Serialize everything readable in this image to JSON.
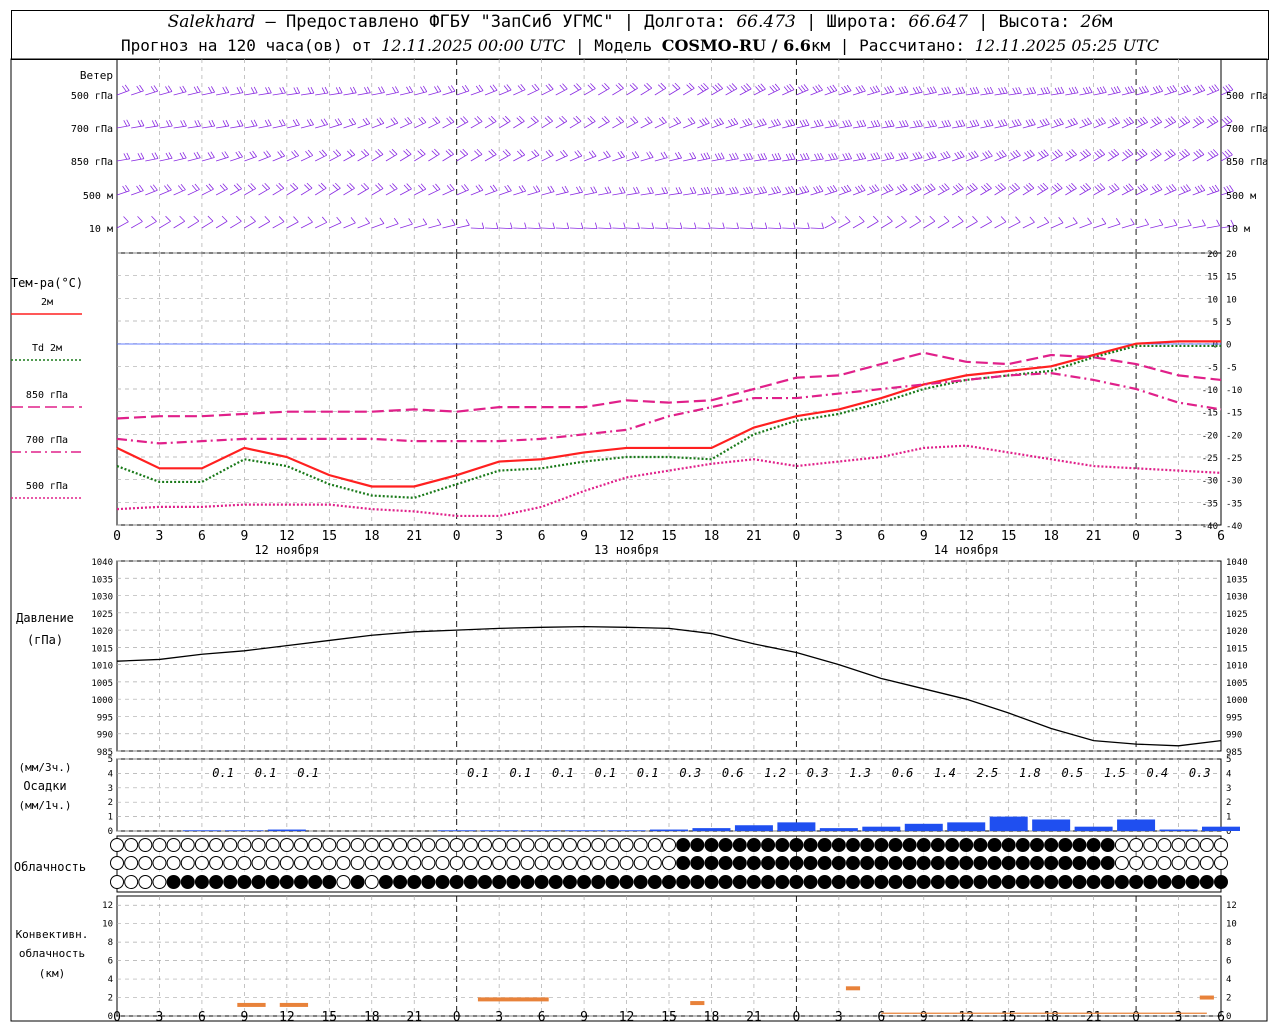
{
  "header": {
    "station": "Salekhard",
    "provider": " – Предоставлено ФГБУ \"ЗапСиб УГМС\" | Долгота: ",
    "lon": "66.473",
    "lat_label": " | Широта: ",
    "lat": "66.647",
    "alt_label": " | Высота: ",
    "alt": "26",
    "alt_unit": "м",
    "forecast_label": "Прогноз на 120 часа(ов) от ",
    "forecast_start": "12.11.2025 00:00 UTC",
    "model_label": " | Модель ",
    "model": "COSMO-RU / 6.6",
    "model_unit": "км",
    "calc_label": " | Рассчитано: ",
    "calc_time": "12.11.2025 05:25 UTC"
  },
  "wind_panel": {
    "title": "Ветер",
    "levels": [
      "500 гПа",
      "700 гПа",
      "850 гПа",
      "500 м",
      "10  м"
    ]
  },
  "temp_panel": {
    "title": "Тем-ра(°С)",
    "legend": [
      {
        "label": "2м",
        "color": "#ff2020",
        "dash": "solid"
      },
      {
        "label": "Td  2м",
        "color": "#1a7a1a",
        "dash": "dotted"
      },
      {
        "label": "850 гПа",
        "color": "#e0208a",
        "dash": "long-dash"
      },
      {
        "label": "700 гПа",
        "color": "#e0208a",
        "dash": "dash-dot"
      },
      {
        "label": "500 гПа",
        "color": "#e0208a",
        "dash": "dotted"
      }
    ],
    "yticks": [
      "20",
      "15",
      "10",
      "5",
      "0",
      "-5",
      "-10",
      "-15",
      "-20",
      "-25",
      "-30",
      "-35",
      "-40"
    ],
    "xticks": [
      "0",
      "3",
      "6",
      "9",
      "12",
      "15",
      "18",
      "21",
      "0",
      "3",
      "6",
      "9",
      "12",
      "15",
      "18",
      "21",
      "0",
      "3",
      "6",
      "9",
      "12",
      "15",
      "18",
      "21",
      "0",
      "3",
      "6"
    ],
    "day_labels": [
      "12 ноября",
      "13 ноября",
      "14 ноября"
    ]
  },
  "pressure_panel": {
    "title1": "Давление",
    "title2": "(гПа)",
    "yticks": [
      "1040",
      "1035",
      "1030",
      "1025",
      "1020",
      "1015",
      "1010",
      "1005",
      "1000",
      "995",
      "990",
      "985"
    ]
  },
  "precip_panel": {
    "unit1": "(мм/3ч.)",
    "title": "Осадки",
    "unit2": "(мм/1ч.)",
    "yticks": [
      "5",
      "4",
      "3",
      "2",
      "1",
      "0"
    ],
    "sums": [
      "0.1",
      "0.1",
      "0.1",
      "0.1",
      "0.1",
      "0.1",
      "0.1",
      "0.1",
      "0.3",
      "0.6",
      "1.2",
      "0.3",
      "1.3",
      "0.6",
      "1.4",
      "2.5",
      "1.8",
      "0.5",
      "1.5",
      "0.4",
      "0.3"
    ]
  },
  "cloud_panel": {
    "title": "Облачность"
  },
  "conv_panel": {
    "title1": "Конвективн.",
    "title2": "облачность",
    "title3": "(км)",
    "yticks": [
      "12",
      "10",
      "8",
      "6",
      "4",
      "2",
      "0"
    ],
    "xticks": [
      "0",
      "3",
      "6",
      "9",
      "12",
      "15",
      "18",
      "21",
      "0",
      "3",
      "6",
      "9",
      "12",
      "15",
      "18",
      "21",
      "0",
      "3",
      "6",
      "9",
      "12",
      "15",
      "18",
      "21",
      "0",
      "3",
      "6"
    ]
  },
  "colors": {
    "wind": "#8a2be2",
    "precip": "#1f4ff0",
    "conv": "#e8823a",
    "pressure": "#000000"
  },
  "chart_data": [
    {
      "type": "line",
      "title": "Тем-ра(°С)",
      "x_hours": [
        0,
        3,
        6,
        9,
        12,
        15,
        18,
        21,
        24,
        27,
        30,
        33,
        36,
        39,
        42,
        45,
        48,
        51,
        54,
        57,
        60,
        63,
        66,
        69,
        72,
        75,
        78
      ],
      "ylim": [
        -40,
        20
      ],
      "series": [
        {
          "name": "2м",
          "values": [
            -23,
            -27.5,
            -27.5,
            -23,
            -25,
            -29,
            -31.5,
            -31.5,
            -29,
            -26,
            -25.5,
            -24,
            -23,
            -23,
            -23,
            -18.5,
            -16,
            -14.5,
            -12,
            -9,
            -7,
            -6,
            -5,
            -2.5,
            0,
            0.5,
            0.5
          ]
        },
        {
          "name": "Td  2м",
          "values": [
            -27,
            -30.5,
            -30.5,
            -25.5,
            -27,
            -31,
            -33.5,
            -34,
            -31,
            -28,
            -27.5,
            -26,
            -25,
            -25,
            -25.5,
            -20,
            -17,
            -15.5,
            -13,
            -10,
            -8,
            -7,
            -6,
            -3,
            -0.5,
            -0.5,
            -0.5
          ]
        },
        {
          "name": "850 гПа",
          "values": [
            -16.5,
            -16,
            -16,
            -15.5,
            -15,
            -15,
            -15,
            -14.5,
            -15,
            -14,
            -14,
            -14,
            -12.5,
            -13,
            -12.5,
            -10,
            -7.5,
            -7,
            -4.5,
            -2,
            -4,
            -4.5,
            -2.5,
            -3,
            -4.5,
            -7,
            -8
          ]
        },
        {
          "name": "700 гПа",
          "values": [
            -21,
            -22,
            -21.5,
            -21,
            -21,
            -21,
            -21,
            -21.5,
            -21.5,
            -21.5,
            -21,
            -20,
            -19,
            -16,
            -14,
            -12,
            -12,
            -11,
            -10,
            -9,
            -8,
            -7,
            -6.5,
            -8,
            -10,
            -13,
            -14.5
          ]
        },
        {
          "name": "500 гПа",
          "values": [
            -36.5,
            -36,
            -36,
            -35.5,
            -35.5,
            -35.5,
            -36.5,
            -37,
            -38,
            -38,
            -36,
            -32.5,
            -29.5,
            -28,
            -26.5,
            -25.5,
            -27,
            -26,
            -25,
            -23,
            -22.5,
            -24,
            -25.5,
            -27,
            -27.5,
            -28,
            -28.5
          ]
        }
      ]
    },
    {
      "type": "line",
      "title": "Давление",
      "ylabel": "(гПа)",
      "x_hours": [
        0,
        3,
        6,
        9,
        12,
        15,
        18,
        21,
        24,
        27,
        30,
        33,
        36,
        39,
        42,
        45,
        48,
        51,
        54,
        57,
        60,
        63,
        66,
        69,
        72,
        75,
        78
      ],
      "ylim": [
        985,
        1040
      ],
      "series": [
        {
          "name": "Давление",
          "values": [
            1011,
            1011.5,
            1013,
            1014,
            1015.5,
            1017,
            1018.5,
            1019.5,
            1020,
            1020.5,
            1020.8,
            1021,
            1020.8,
            1020.5,
            1019,
            1016,
            1013.5,
            1010,
            1006,
            1003,
            1000,
            996,
            991.5,
            988,
            987,
            986.5,
            988
          ]
        }
      ]
    },
    {
      "type": "bar",
      "title": "Осадки",
      "ylabel": "(мм/1ч.)",
      "x_hours": [
        0,
        3,
        6,
        9,
        12,
        15,
        18,
        21,
        24,
        27,
        30,
        33,
        36,
        39,
        42,
        45,
        48,
        51,
        54,
        57,
        60,
        63,
        66,
        69,
        72,
        75,
        78
      ],
      "ylim": [
        0,
        5
      ],
      "values": [
        0,
        0,
        0.05,
        0.05,
        0.1,
        0,
        0,
        0,
        0.05,
        0.05,
        0.05,
        0.05,
        0.05,
        0.1,
        0.2,
        0.4,
        0.6,
        0.2,
        0.3,
        0.5,
        0.6,
        1.0,
        0.8,
        0.3,
        0.8,
        0.1,
        0.3
      ]
    },
    {
      "type": "bar",
      "title": "Конвективн. облачность",
      "ylabel": "(км)",
      "ylim": [
        0,
        13
      ],
      "segments": [
        {
          "from": 8.5,
          "to": 10.5,
          "height": 1.2
        },
        {
          "from": 11.5,
          "to": 13.5,
          "height": 1.2
        },
        {
          "from": 25.5,
          "to": 30.5,
          "height": 1.8
        },
        {
          "from": 40.5,
          "to": 41.5,
          "height": 1.4
        },
        {
          "from": 51.5,
          "to": 52.5,
          "height": 3.0
        },
        {
          "from": 76.5,
          "to": 77.5,
          "height": 2.0
        }
      ]
    }
  ]
}
